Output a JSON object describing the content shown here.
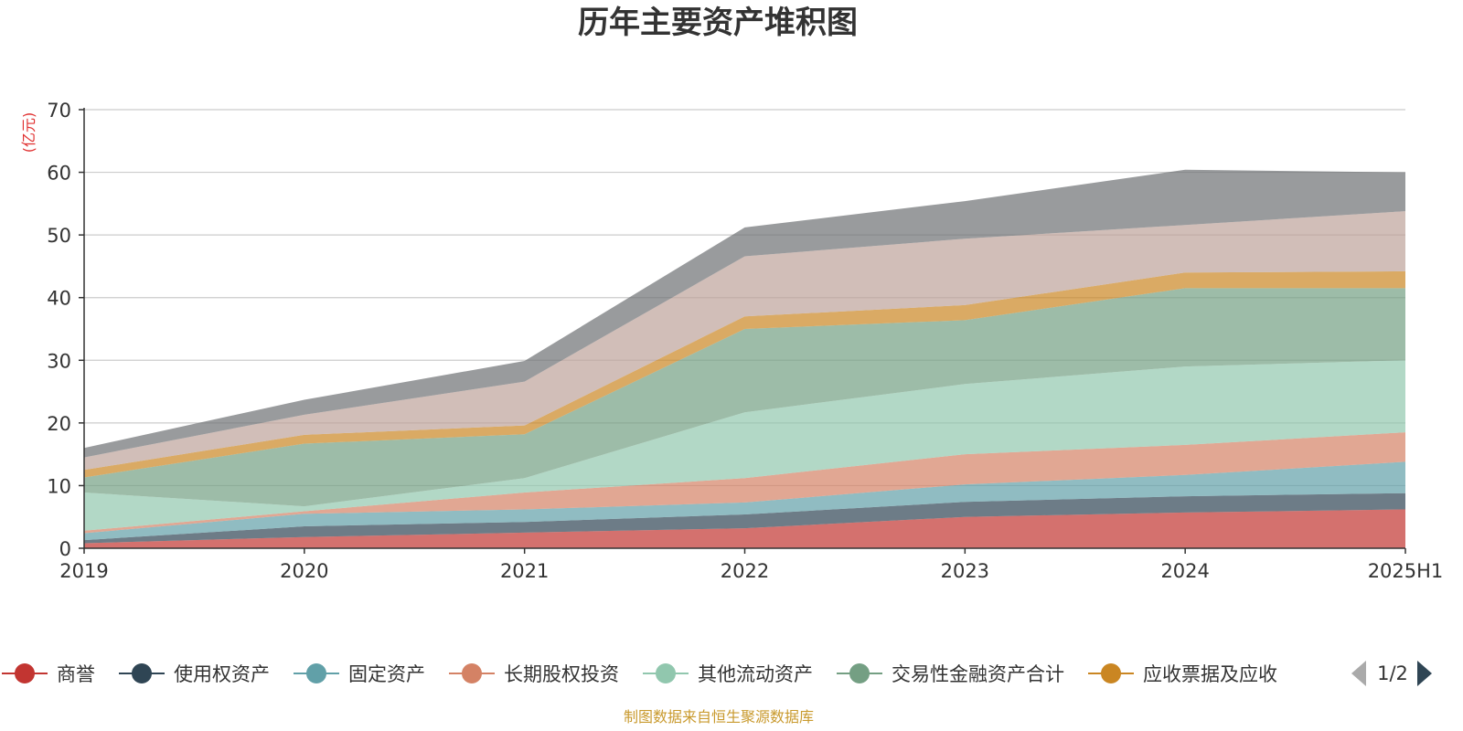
{
  "chart_data": {
    "type": "area",
    "stacked": true,
    "title": "历年主要资产堆积图",
    "ylabel": "(亿元)",
    "xlabel": "",
    "categories": [
      "2019",
      "2020",
      "2021",
      "2022",
      "2023",
      "2024",
      "2025H1"
    ],
    "ylim": [
      0,
      70
    ],
    "yticks": [
      0,
      10,
      20,
      30,
      40,
      50,
      60,
      70
    ],
    "grid": true,
    "legend_position": "bottom",
    "legend_page": "1/2",
    "series": [
      {
        "name": "商誉",
        "color": "#c23531",
        "values": [
          0.8,
          1.8,
          2.5,
          3.2,
          5.0,
          5.7,
          6.2
        ]
      },
      {
        "name": "使用权资产",
        "color": "#2f4554",
        "values": [
          0.5,
          1.7,
          1.7,
          2.2,
          2.4,
          2.6,
          2.6
        ]
      },
      {
        "name": "固定资产",
        "color": "#61a0a8",
        "values": [
          1.1,
          2.0,
          2.0,
          1.9,
          2.8,
          3.4,
          5.0
        ]
      },
      {
        "name": "长期股权投资",
        "color": "#d48265",
        "values": [
          0.4,
          0.4,
          2.7,
          3.9,
          4.8,
          4.8,
          4.7
        ]
      },
      {
        "name": "其他流动资产",
        "color": "#91c7ae",
        "values": [
          6.1,
          0.8,
          2.3,
          10.5,
          11.2,
          12.5,
          11.5
        ]
      },
      {
        "name": "交易性金融资产合计",
        "color": "#749f83",
        "values": [
          2.4,
          10.0,
          7.0,
          13.3,
          10.2,
          12.5,
          11.5
        ]
      },
      {
        "name": "应收票据及应收",
        "color": "#ca8622",
        "values": [
          1.2,
          1.4,
          1.4,
          2.0,
          2.4,
          2.5,
          2.7
        ]
      },
      {
        "name": "",
        "color": "#bda29a",
        "values": [
          2.0,
          3.2,
          7.0,
          9.6,
          10.6,
          7.6,
          9.6
        ]
      },
      {
        "name": "",
        "color": "#6e7074",
        "values": [
          1.5,
          2.4,
          3.3,
          4.6,
          6.0,
          8.8,
          6.2
        ]
      }
    ]
  },
  "footer": {
    "source": "制图数据来自恒生聚源数据库"
  },
  "pager": {
    "text": "1/2"
  }
}
